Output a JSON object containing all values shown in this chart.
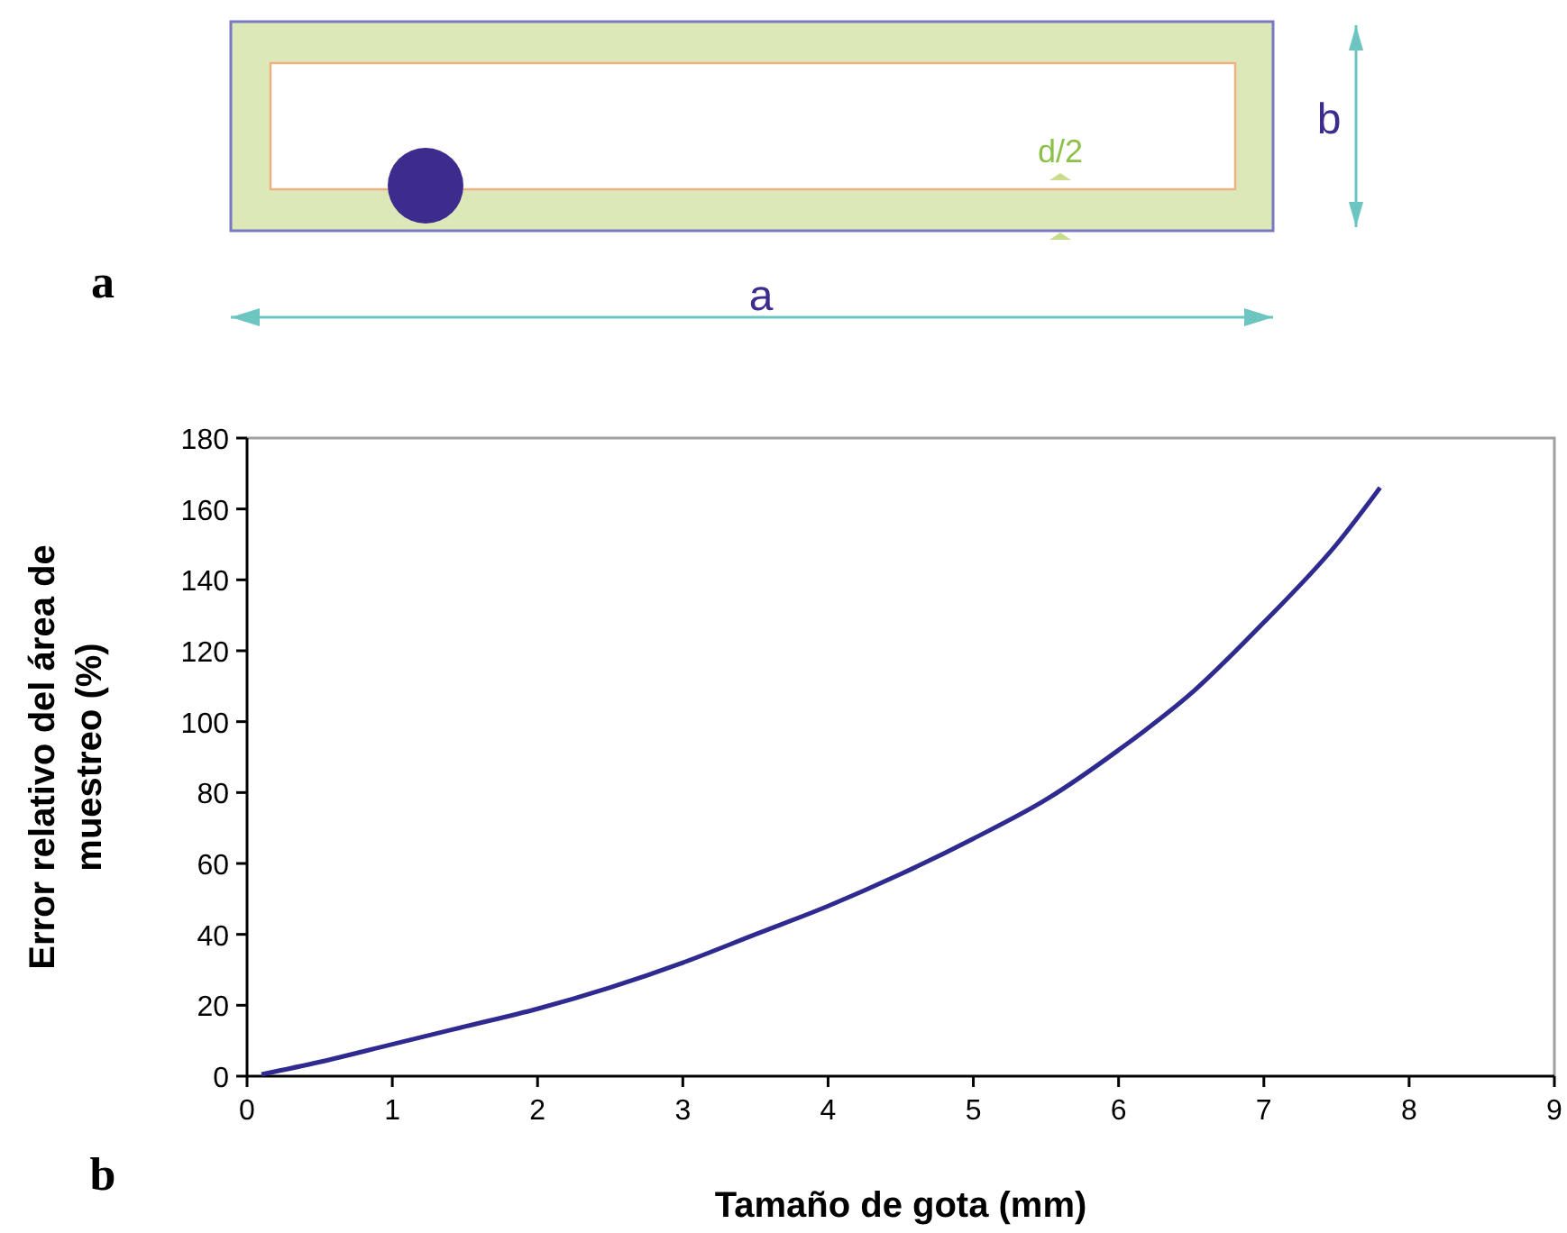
{
  "chart_data": {
    "type": "line",
    "xlabel": "Tamaño de gota (mm)",
    "ylabel": "Error relativo del área de muestreo (%)",
    "xlim": [
      0,
      9
    ],
    "xticks": [
      0,
      1,
      2,
      3,
      4,
      5,
      6,
      7,
      8,
      9
    ],
    "ylim": [
      0,
      180
    ],
    "yticks": [
      0,
      20,
      40,
      60,
      80,
      100,
      120,
      140,
      160,
      180
    ],
    "marker": "none",
    "line_style": "solid",
    "series": [
      {
        "color": "#2e2a8f",
        "x": [
          0.1,
          0.5,
          1,
          1.5,
          2,
          2.5,
          3,
          3.5,
          4,
          4.5,
          5,
          5.5,
          6,
          6.5,
          7,
          7.5,
          7.8
        ],
        "values": [
          0.5,
          4,
          9,
          14,
          19,
          25,
          32,
          40,
          48,
          57,
          67,
          78,
          92,
          108,
          128,
          150,
          166
        ]
      }
    ],
    "annotations": [
      "a",
      "b",
      "d/2",
      "a",
      "b"
    ]
  }
}
